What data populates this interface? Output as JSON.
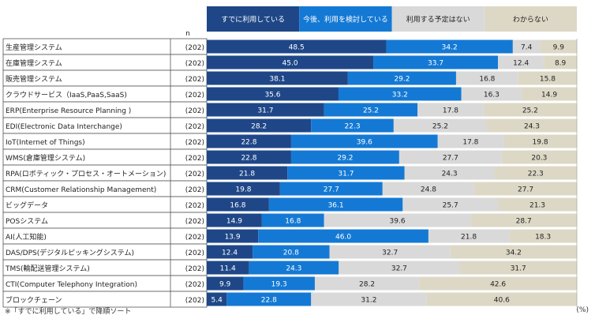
{
  "chart_data": {
    "type": "bar",
    "orientation": "horizontal",
    "stacked": true,
    "normalized": true,
    "n_header": "n",
    "unit_label": "(%)",
    "footnote": "※「すでに利用している」で降順ソート",
    "xlim": [
      0,
      100
    ],
    "colors": [
      "#1f4788",
      "#1479d4",
      "#d9d9d9",
      "#ddd8c6"
    ],
    "series": [
      {
        "name": "すでに利用している",
        "values": [
          48.5,
          45.0,
          38.1,
          35.6,
          31.7,
          28.2,
          22.8,
          22.8,
          21.8,
          19.8,
          16.8,
          14.9,
          13.9,
          12.4,
          11.4,
          9.9,
          5.4
        ]
      },
      {
        "name": "今後、利用を検討している",
        "values": [
          34.2,
          33.7,
          29.2,
          33.2,
          25.2,
          22.3,
          39.6,
          29.2,
          31.7,
          27.7,
          36.1,
          16.8,
          46.0,
          20.8,
          24.3,
          19.3,
          22.8
        ]
      },
      {
        "name": "利用する予定はない",
        "values": [
          7.4,
          12.4,
          16.8,
          16.3,
          17.8,
          25.2,
          17.8,
          27.7,
          24.3,
          24.8,
          25.7,
          39.6,
          21.8,
          32.7,
          32.7,
          28.2,
          31.2
        ]
      },
      {
        "name": "わからない",
        "values": [
          9.9,
          8.9,
          15.8,
          14.9,
          25.2,
          24.3,
          19.8,
          20.3,
          22.3,
          27.7,
          21.3,
          28.7,
          18.3,
          34.2,
          31.7,
          42.6,
          40.6
        ]
      }
    ],
    "categories": [
      {
        "label": "生産管理システム",
        "n": "(202)"
      },
      {
        "label": "在庫管理システム",
        "n": "(202)"
      },
      {
        "label": "販売管理システム",
        "n": "(202)"
      },
      {
        "label": "クラウドサービス（IaaS,PaaS,SaaS)",
        "n": "(202)"
      },
      {
        "label": "ERP(Enterprise Resource Planning )",
        "n": "(202)"
      },
      {
        "label": "EDI(Electronic Data Interchange)",
        "n": "(202)"
      },
      {
        "label": "IoT(Internet of Things)",
        "n": "(202)"
      },
      {
        "label": "WMS(倉庫管理システム)",
        "n": "(202)"
      },
      {
        "label": "RPA(ロボティック・プロセス・オートメーション)",
        "n": "(202)"
      },
      {
        "label": "CRM(Customer Relationship Management)",
        "n": "(202)"
      },
      {
        "label": "ビッグデータ",
        "n": "(202)"
      },
      {
        "label": "POSシステム",
        "n": "(202)"
      },
      {
        "label": "AI(人工知能)",
        "n": "(202)"
      },
      {
        "label": "DAS/DPS(デジタルピッキングシステム)",
        "n": "(202)"
      },
      {
        "label": "TMS(輸配送管理システム)",
        "n": "(202)"
      },
      {
        "label": "CTI(Computer Telephony Integration)",
        "n": "(202)"
      },
      {
        "label": "ブロックチェーン",
        "n": "(202)"
      }
    ]
  }
}
